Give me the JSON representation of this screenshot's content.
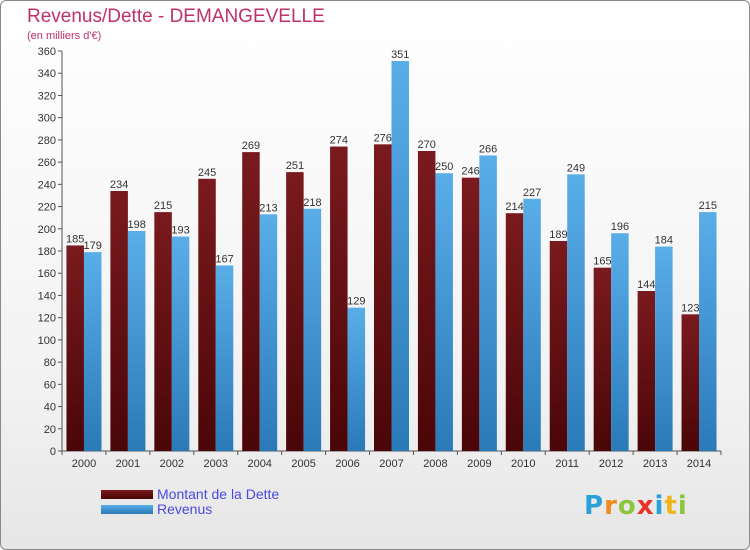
{
  "header": {
    "title": "Revenus/Dette - DEMANGEVELLE",
    "subtitle": "(en milliers d'€)"
  },
  "legend": {
    "debt_label": "Montant de la Dette",
    "revenue_label": "Revenus"
  },
  "logo": {
    "letters": [
      "P",
      "r",
      "o",
      "x",
      "i",
      "t",
      "i"
    ],
    "colors": [
      "#2aa0d8",
      "#f08a1c",
      "#8cc63f",
      "#e8332a",
      "#2aa0d8",
      "#f0b41c",
      "#8cc63f"
    ]
  },
  "colors": {
    "debt": "#7a1a1e",
    "debt_dark": "#4a0608",
    "revenue": "#5aaee8",
    "revenue_dark": "#2a7ab8",
    "axis_text": "#333333",
    "grid": "#cccccc"
  },
  "chart_data": {
    "type": "bar",
    "title": "Revenus/Dette - DEMANGEVELLE",
    "subtitle": "(en milliers d'€)",
    "categories": [
      "2000",
      "2001",
      "2002",
      "2003",
      "2004",
      "2005",
      "2006",
      "2007",
      "2008",
      "2009",
      "2010",
      "2011",
      "2012",
      "2013",
      "2014"
    ],
    "series": [
      {
        "name": "Montant de la Dette",
        "values": [
          185,
          234,
          215,
          245,
          269,
          251,
          274,
          276,
          270,
          246,
          214,
          189,
          165,
          144,
          123
        ]
      },
      {
        "name": "Revenus",
        "values": [
          179,
          198,
          193,
          167,
          213,
          218,
          129,
          351,
          250,
          266,
          227,
          249,
          196,
          184,
          215
        ]
      }
    ],
    "ylim": [
      0,
      360
    ],
    "ytick_step": 20,
    "grid": false,
    "legend_position": "bottom-left"
  }
}
